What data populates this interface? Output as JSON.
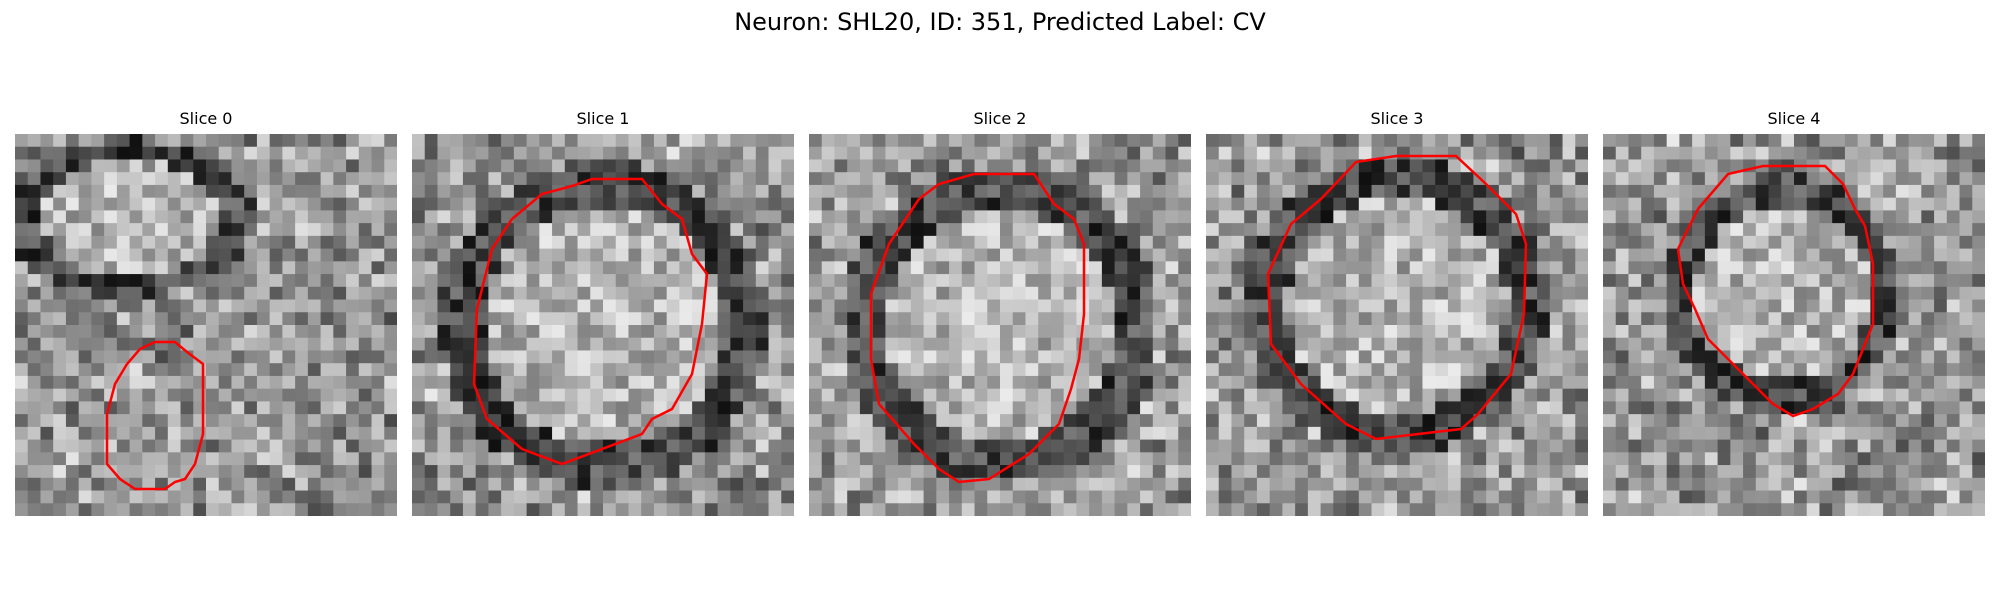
{
  "figure": {
    "title": "Neuron: SHL20, ID: 351, Predicted Label: CV",
    "contour_color": "#ff0000"
  },
  "panels": [
    {
      "title": "Slice 0"
    },
    {
      "title": "Slice 1"
    },
    {
      "title": "Slice 2"
    },
    {
      "title": "Slice 3"
    },
    {
      "title": "Slice 4"
    }
  ]
}
